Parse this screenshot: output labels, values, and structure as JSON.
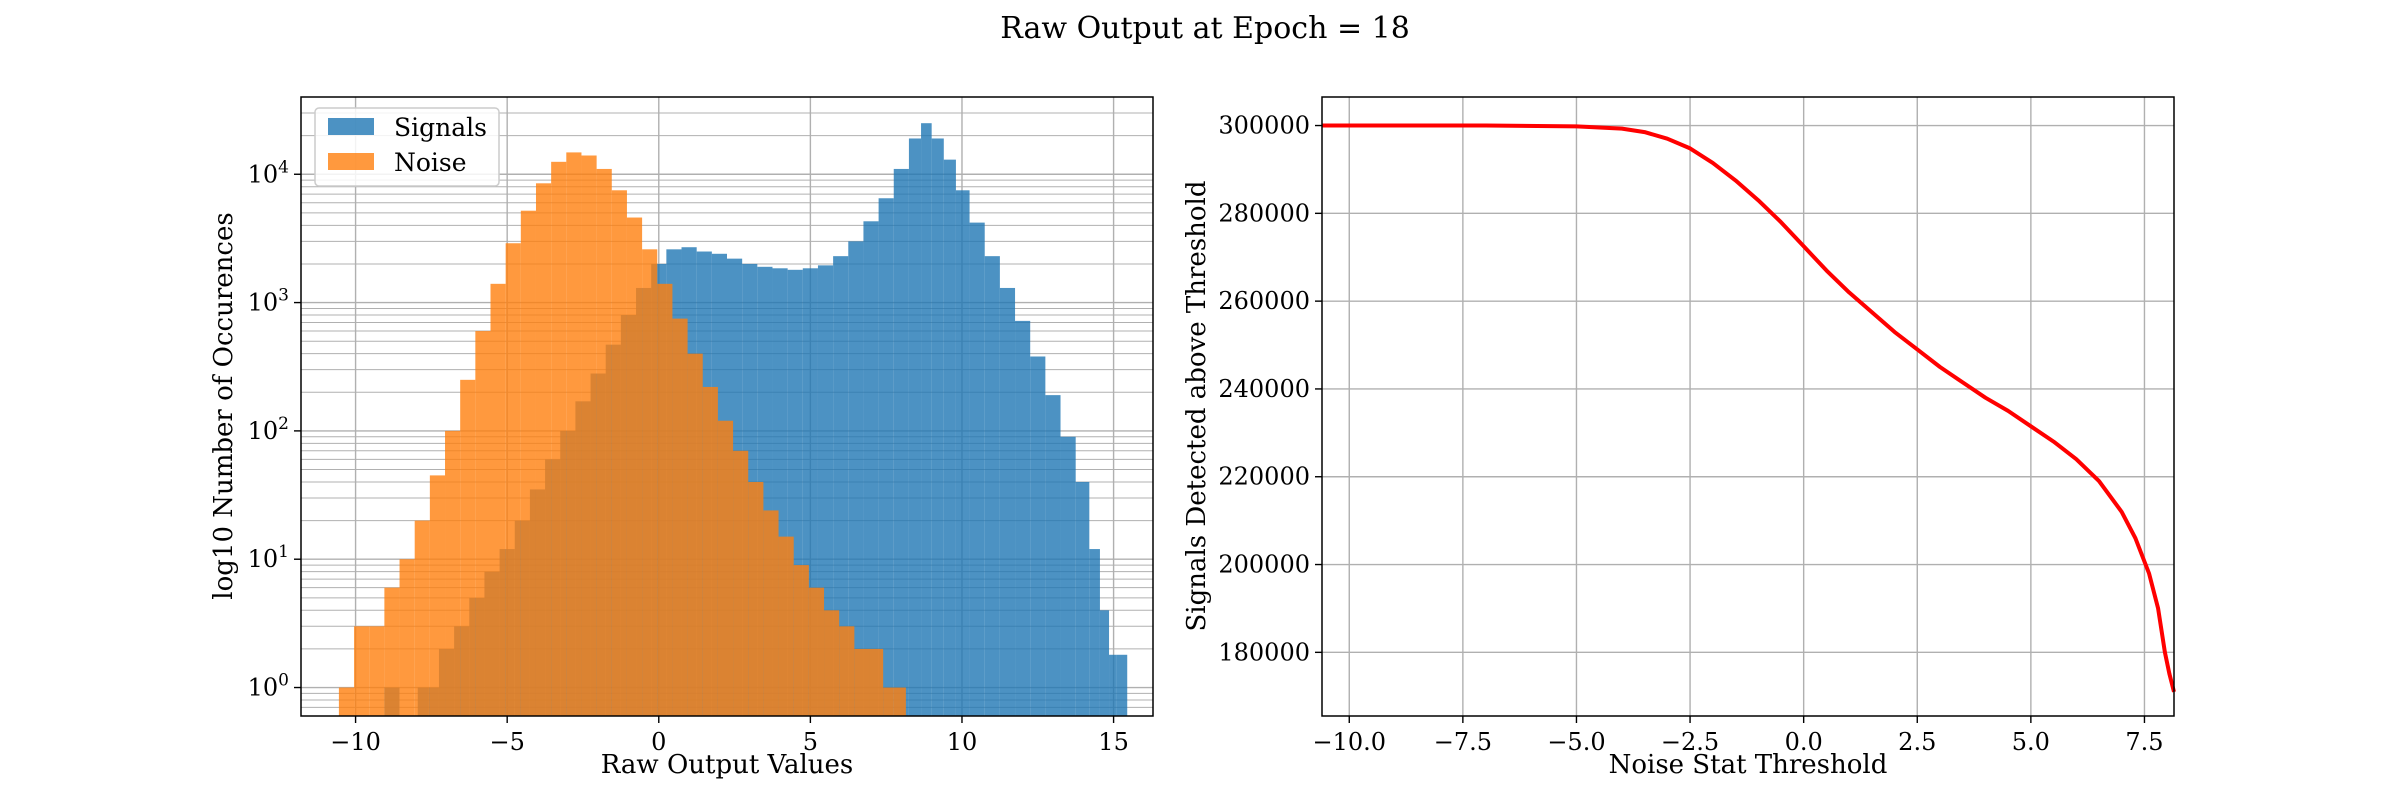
{
  "figure": {
    "suptitle": "Raw Output at Epoch = 18"
  },
  "chart_data": [
    {
      "type": "histogram",
      "scale_y": "log",
      "xlabel": "Raw Output Values",
      "ylabel": "log10 Number of Occurences",
      "xlim": [
        -11.8,
        16.3
      ],
      "ylim": [
        0.6,
        40000
      ],
      "grid": true,
      "legend_position": "top-left",
      "x_ticks": [
        "−10",
        "−5",
        "0",
        "5",
        "10",
        "15"
      ],
      "x_tick_values": [
        -10,
        -5,
        0,
        5,
        10,
        15
      ],
      "y_ticks": [
        {
          "value": 1,
          "base": "10",
          "exp": "0"
        },
        {
          "value": 10,
          "base": "10",
          "exp": "1"
        },
        {
          "value": 100,
          "base": "10",
          "exp": "2"
        },
        {
          "value": 1000,
          "base": "10",
          "exp": "3"
        },
        {
          "value": 10000,
          "base": "10",
          "exp": "4"
        }
      ],
      "series": [
        {
          "name": "Signals",
          "color": "#1f77b4",
          "bins": [
            {
              "x": -8.8,
              "count": 1
            },
            {
              "x": -7.7,
              "count": 1
            },
            {
              "x": -7.5,
              "count": 1
            },
            {
              "x": -7.0,
              "count": 2
            },
            {
              "x": -6.5,
              "count": 3
            },
            {
              "x": -6.0,
              "count": 5
            },
            {
              "x": -5.5,
              "count": 8
            },
            {
              "x": -5.0,
              "count": 12
            },
            {
              "x": -4.5,
              "count": 20
            },
            {
              "x": -4.0,
              "count": 35
            },
            {
              "x": -3.5,
              "count": 60
            },
            {
              "x": -3.0,
              "count": 100
            },
            {
              "x": -2.5,
              "count": 170
            },
            {
              "x": -2.0,
              "count": 280
            },
            {
              "x": -1.5,
              "count": 470
            },
            {
              "x": -1.0,
              "count": 800
            },
            {
              "x": -0.5,
              "count": 1300
            },
            {
              "x": 0.0,
              "count": 2000
            },
            {
              "x": 0.5,
              "count": 2600
            },
            {
              "x": 1.0,
              "count": 2700
            },
            {
              "x": 1.5,
              "count": 2500
            },
            {
              "x": 2.0,
              "count": 2400
            },
            {
              "x": 2.5,
              "count": 2200
            },
            {
              "x": 3.0,
              "count": 2000
            },
            {
              "x": 3.5,
              "count": 1900
            },
            {
              "x": 4.0,
              "count": 1850
            },
            {
              "x": 4.5,
              "count": 1800
            },
            {
              "x": 5.0,
              "count": 1850
            },
            {
              "x": 5.5,
              "count": 1950
            },
            {
              "x": 6.0,
              "count": 2300
            },
            {
              "x": 6.5,
              "count": 3000
            },
            {
              "x": 7.0,
              "count": 4300
            },
            {
              "x": 7.5,
              "count": 6500
            },
            {
              "x": 8.0,
              "count": 11000
            },
            {
              "x": 8.5,
              "count": 19000
            },
            {
              "x": 8.8,
              "count": 25000
            },
            {
              "x": 9.2,
              "count": 19000
            },
            {
              "x": 9.6,
              "count": 13000
            },
            {
              "x": 10.0,
              "count": 7500
            },
            {
              "x": 10.5,
              "count": 4200
            },
            {
              "x": 11.0,
              "count": 2300
            },
            {
              "x": 11.5,
              "count": 1300
            },
            {
              "x": 12.0,
              "count": 720
            },
            {
              "x": 12.5,
              "count": 380
            },
            {
              "x": 13.0,
              "count": 190
            },
            {
              "x": 13.5,
              "count": 90
            },
            {
              "x": 14.0,
              "count": 40
            },
            {
              "x": 14.4,
              "count": 12
            },
            {
              "x": 14.7,
              "count": 4
            },
            {
              "x": 15.0,
              "count": 1.8
            },
            {
              "x": 15.2,
              "count": 1.8
            }
          ]
        },
        {
          "name": "Noise",
          "color": "#ff7f0e",
          "bins": [
            {
              "x": -10.3,
              "count": 1
            },
            {
              "x": -9.8,
              "count": 3
            },
            {
              "x": -9.3,
              "count": 3
            },
            {
              "x": -8.8,
              "count": 6
            },
            {
              "x": -8.3,
              "count": 10
            },
            {
              "x": -7.8,
              "count": 20
            },
            {
              "x": -7.3,
              "count": 45
            },
            {
              "x": -6.8,
              "count": 100
            },
            {
              "x": -6.3,
              "count": 250
            },
            {
              "x": -5.8,
              "count": 600
            },
            {
              "x": -5.3,
              "count": 1400
            },
            {
              "x": -4.8,
              "count": 2900
            },
            {
              "x": -4.3,
              "count": 5200
            },
            {
              "x": -3.8,
              "count": 8500
            },
            {
              "x": -3.3,
              "count": 12500
            },
            {
              "x": -2.8,
              "count": 14800
            },
            {
              "x": -2.3,
              "count": 14000
            },
            {
              "x": -1.8,
              "count": 11000
            },
            {
              "x": -1.3,
              "count": 7500
            },
            {
              "x": -0.8,
              "count": 4600
            },
            {
              "x": -0.3,
              "count": 2600
            },
            {
              "x": 0.2,
              "count": 1400
            },
            {
              "x": 0.7,
              "count": 750
            },
            {
              "x": 1.2,
              "count": 400
            },
            {
              "x": 1.7,
              "count": 220
            },
            {
              "x": 2.2,
              "count": 120
            },
            {
              "x": 2.7,
              "count": 70
            },
            {
              "x": 3.2,
              "count": 40
            },
            {
              "x": 3.7,
              "count": 24
            },
            {
              "x": 4.2,
              "count": 15
            },
            {
              "x": 4.7,
              "count": 9
            },
            {
              "x": 5.2,
              "count": 6
            },
            {
              "x": 5.7,
              "count": 4
            },
            {
              "x": 6.2,
              "count": 3
            },
            {
              "x": 6.7,
              "count": 2
            },
            {
              "x": 7.2,
              "count": 2
            },
            {
              "x": 7.6,
              "count": 1
            },
            {
              "x": 7.9,
              "count": 1
            }
          ]
        }
      ]
    },
    {
      "type": "line",
      "xlabel": "Noise Stat Threshold",
      "ylabel": "Signals Detected above Threshold",
      "xlim": [
        -10.6,
        8.15
      ],
      "ylim": [
        165500,
        306500
      ],
      "grid": true,
      "x_ticks": [
        "−10.0",
        "−7.5",
        "−5.0",
        "−2.5",
        "0.0",
        "2.5",
        "5.0",
        "7.5"
      ],
      "x_tick_values": [
        -10,
        -7.5,
        -5,
        -2.5,
        0,
        2.5,
        5,
        7.5
      ],
      "y_ticks": [
        "180000",
        "200000",
        "220000",
        "240000",
        "260000",
        "280000",
        "300000"
      ],
      "y_tick_values": [
        180000,
        200000,
        220000,
        240000,
        260000,
        280000,
        300000
      ],
      "series": [
        {
          "color": "#ff0000",
          "points": [
            [
              -10.6,
              300000
            ],
            [
              -7.0,
              300000
            ],
            [
              -5.0,
              299800
            ],
            [
              -4.0,
              299300
            ],
            [
              -3.5,
              298500
            ],
            [
              -3.0,
              297000
            ],
            [
              -2.5,
              294800
            ],
            [
              -2.0,
              291500
            ],
            [
              -1.5,
              287500
            ],
            [
              -1.0,
              283000
            ],
            [
              -0.5,
              278000
            ],
            [
              0.0,
              272500
            ],
            [
              0.5,
              267000
            ],
            [
              1.0,
              262000
            ],
            [
              1.5,
              257500
            ],
            [
              2.0,
              253000
            ],
            [
              2.5,
              249000
            ],
            [
              3.0,
              245000
            ],
            [
              3.5,
              241500
            ],
            [
              4.0,
              238000
            ],
            [
              4.5,
              235000
            ],
            [
              5.0,
              231500
            ],
            [
              5.5,
              228000
            ],
            [
              6.0,
              224000
            ],
            [
              6.5,
              219000
            ],
            [
              7.0,
              212000
            ],
            [
              7.3,
              206000
            ],
            [
              7.6,
              198000
            ],
            [
              7.8,
              190000
            ],
            [
              7.95,
              180000
            ],
            [
              8.05,
              175000
            ],
            [
              8.15,
              171000
            ]
          ]
        }
      ]
    }
  ]
}
